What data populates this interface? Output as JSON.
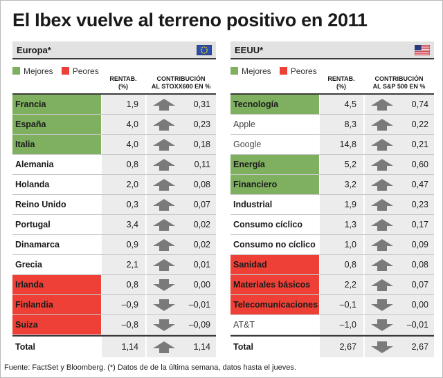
{
  "title": "El Ibex vuelve al terreno positivo en 2011",
  "legend": {
    "better": "Mejores",
    "worse": "Peores",
    "better_color": "#7fb060",
    "worse_color": "#ee4036"
  },
  "footer": "Fuente: FactSet y Bloomberg. (*) Datos de de la última semana, datos hasta el jueves.",
  "chart_data": [
    {
      "type": "table",
      "region": "Europa*",
      "flag_icon": "eu-flag-icon",
      "columns": [
        "RENTAB. (%)",
        "CONTRIBUCIÓN AL STOXX600 EN %"
      ],
      "col_rent_1": "RENTAB.",
      "col_rent_2": "(%)",
      "col_contrib_1": "CONTRIBUCIÓN",
      "col_contrib_2": "AL STOXX600 EN %",
      "rows": [
        {
          "name": "Francia",
          "rent": "1,9",
          "contrib": "0,31",
          "dir": "up",
          "mark": "green",
          "bold": true
        },
        {
          "name": "España",
          "rent": "4,0",
          "contrib": "0,23",
          "dir": "up",
          "mark": "green",
          "bold": true
        },
        {
          "name": "Italia",
          "rent": "4,0",
          "contrib": "0,18",
          "dir": "up",
          "mark": "green",
          "bold": true
        },
        {
          "name": "Alemania",
          "rent": "0,8",
          "contrib": "0,11",
          "dir": "up",
          "mark": "none",
          "bold": true
        },
        {
          "name": "Holanda",
          "rent": "2,0",
          "contrib": "0,08",
          "dir": "up",
          "mark": "none",
          "bold": true
        },
        {
          "name": "Reino Unido",
          "rent": "0,3",
          "contrib": "0,07",
          "dir": "up",
          "mark": "none",
          "bold": true
        },
        {
          "name": "Portugal",
          "rent": "3,4",
          "contrib": "0,02",
          "dir": "up",
          "mark": "none",
          "bold": true
        },
        {
          "name": "Dinamarca",
          "rent": "0,9",
          "contrib": "0,02",
          "dir": "up",
          "mark": "none",
          "bold": true
        },
        {
          "name": "Grecia",
          "rent": "2,1",
          "contrib": "0,01",
          "dir": "up",
          "mark": "none",
          "bold": true
        },
        {
          "name": "Irlanda",
          "rent": "0,8",
          "contrib": "0,00",
          "dir": "down",
          "mark": "red",
          "bold": true
        },
        {
          "name": "Finlandia",
          "rent": "–0,9",
          "contrib": "–0,01",
          "dir": "down",
          "mark": "red",
          "bold": true
        },
        {
          "name": "Suiza",
          "rent": "–0,8",
          "contrib": "–0,09",
          "dir": "down",
          "mark": "red",
          "bold": true
        }
      ],
      "total": {
        "name": "Total",
        "rent": "1,14",
        "contrib": "1,14",
        "dir": "up"
      }
    },
    {
      "type": "table",
      "region": "EEUU*",
      "flag_icon": "us-flag-icon",
      "columns": [
        "RENTAB. (%)",
        "CONTRIBUCIÓN AL S&P 500 EN %"
      ],
      "col_rent_1": "RENTAB.",
      "col_rent_2": "(%)",
      "col_contrib_1": "CONTRIBUCIÓN",
      "col_contrib_2": "AL S&P 500 EN %",
      "rows": [
        {
          "name": "Tecnología",
          "rent": "4,5",
          "contrib": "0,74",
          "dir": "up",
          "mark": "green",
          "bold": true
        },
        {
          "name": "Apple",
          "rent": "8,3",
          "contrib": "0,22",
          "dir": "up",
          "mark": "none",
          "bold": false
        },
        {
          "name": "Google",
          "rent": "14,8",
          "contrib": "0,21",
          "dir": "up",
          "mark": "none",
          "bold": false
        },
        {
          "name": "Energía",
          "rent": "5,2",
          "contrib": "0,60",
          "dir": "up",
          "mark": "green",
          "bold": true
        },
        {
          "name": "Financiero",
          "rent": "3,2",
          "contrib": "0,47",
          "dir": "up",
          "mark": "green",
          "bold": true
        },
        {
          "name": "Industrial",
          "rent": "1,9",
          "contrib": "0,23",
          "dir": "up",
          "mark": "none",
          "bold": true
        },
        {
          "name": "Consumo cíclico",
          "rent": "1,3",
          "contrib": "0,17",
          "dir": "up",
          "mark": "none",
          "bold": true
        },
        {
          "name": "Consumo no cíclico",
          "rent": "1,0",
          "contrib": "0,09",
          "dir": "up",
          "mark": "none",
          "bold": true
        },
        {
          "name": "Sanidad",
          "rent": "0,8",
          "contrib": "0,08",
          "dir": "up",
          "mark": "red",
          "bold": true
        },
        {
          "name": "Materiales básicos",
          "rent": "2,2",
          "contrib": "0,07",
          "dir": "up",
          "mark": "red",
          "bold": true
        },
        {
          "name": "Telecomunicaciones",
          "rent": "–0,1",
          "contrib": "0,00",
          "dir": "down",
          "mark": "red",
          "bold": true
        },
        {
          "name": "AT&T",
          "rent": "–1,0",
          "contrib": "–0,01",
          "dir": "down",
          "mark": "none",
          "bold": false
        }
      ],
      "total": {
        "name": "Total",
        "rent": "2,67",
        "contrib": "2,67",
        "dir": "down"
      }
    }
  ]
}
